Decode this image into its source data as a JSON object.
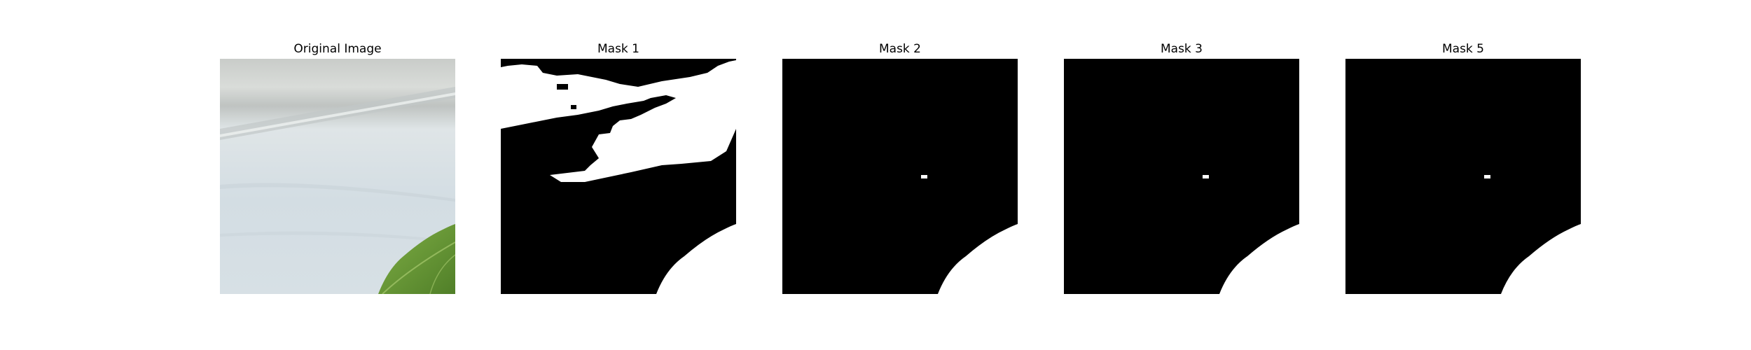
{
  "figure": {
    "panels": [
      {
        "title": "Original Image"
      },
      {
        "title": "Mask 1"
      },
      {
        "title": "Mask 2"
      },
      {
        "title": "Mask 3"
      },
      {
        "title": "Mask 5"
      }
    ]
  },
  "colors": {
    "mask_background": "#000000",
    "mask_foreground": "#ffffff",
    "wall": "#d6dfe4",
    "leaf": "#6a9a38"
  }
}
